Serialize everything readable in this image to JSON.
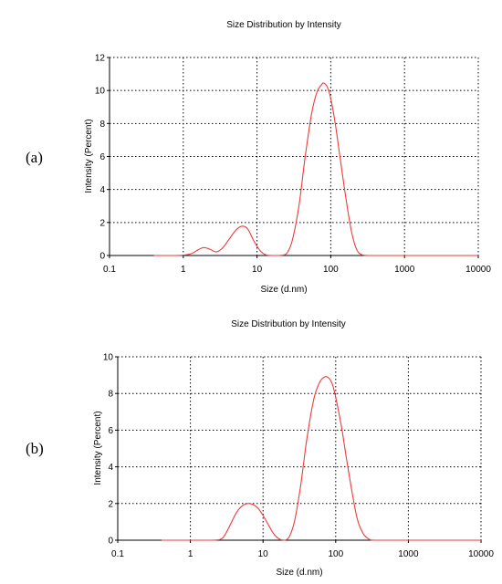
{
  "chart_data": [
    {
      "panel_label": "(a)",
      "type": "line",
      "title": "Size Distribution by Intensity",
      "xlabel": "Size (d.nm)",
      "ylabel": "Intensity (Percent)",
      "xscale": "log",
      "xlim": [
        0.1,
        10000
      ],
      "ylim": [
        0,
        12
      ],
      "xticks": [
        "0.1",
        "1",
        "10",
        "100",
        "1000",
        "10000"
      ],
      "yticks": [
        "0",
        "2",
        "4",
        "6",
        "8",
        "10",
        "12"
      ],
      "grid": true,
      "color": "#ef3a3a",
      "series": [
        {
          "x": [
            0.4,
            0.8,
            1.0,
            1.3,
            1.6,
            1.9,
            2.3,
            2.8,
            3.4,
            4.2,
            5.2,
            6.3,
            7.5,
            9.0,
            11,
            13,
            16,
            20,
            25,
            30,
            37,
            45,
            55,
            65,
            75,
            80,
            90,
            100,
            115,
            135,
            160,
            190,
            225,
            270,
            320,
            400,
            1000,
            5000,
            10000
          ],
          "y": [
            0,
            0,
            0.02,
            0.12,
            0.35,
            0.48,
            0.38,
            0.22,
            0.45,
            1.0,
            1.55,
            1.78,
            1.6,
            0.9,
            0.3,
            0.05,
            0,
            0,
            0.1,
            0.9,
            3.0,
            6.0,
            8.6,
            9.9,
            10.35,
            10.45,
            10.2,
            9.5,
            8.0,
            5.8,
            3.5,
            1.5,
            0.35,
            0.03,
            0,
            0,
            0,
            0,
            0
          ]
        }
      ]
    },
    {
      "panel_label": "(b)",
      "type": "line",
      "title": "Size Distribution by Intensity",
      "xlabel": "Size (d.nm)",
      "ylabel": "Intensity (Percent)",
      "xscale": "log",
      "xlim": [
        0.1,
        10000
      ],
      "ylim": [
        0,
        10
      ],
      "xticks": [
        "0.1",
        "1",
        "10",
        "100",
        "1000",
        "10000"
      ],
      "yticks": [
        "0",
        "2",
        "4",
        "6",
        "8",
        "10"
      ],
      "grid": true,
      "color": "#ef3a3a",
      "series": [
        {
          "x": [
            0.4,
            1.0,
            2.0,
            2.6,
            3.0,
            3.6,
            4.3,
            5.2,
            6.2,
            7.2,
            8.5,
            10,
            12,
            14,
            17,
            20,
            23,
            27,
            33,
            40,
            50,
            60,
            70,
            80,
            90,
            100,
            120,
            140,
            170,
            200,
            240,
            290,
            350,
            1000,
            5000,
            10000
          ],
          "y": [
            0,
            0,
            0,
            0.05,
            0.3,
            0.9,
            1.5,
            1.88,
            2.0,
            1.95,
            1.75,
            1.35,
            0.8,
            0.35,
            0.05,
            0,
            0.2,
            1.0,
            3.0,
            5.5,
            7.7,
            8.6,
            8.9,
            8.85,
            8.5,
            7.8,
            6.2,
            4.5,
            2.5,
            1.1,
            0.35,
            0.05,
            0,
            0,
            0,
            0
          ]
        }
      ]
    }
  ]
}
